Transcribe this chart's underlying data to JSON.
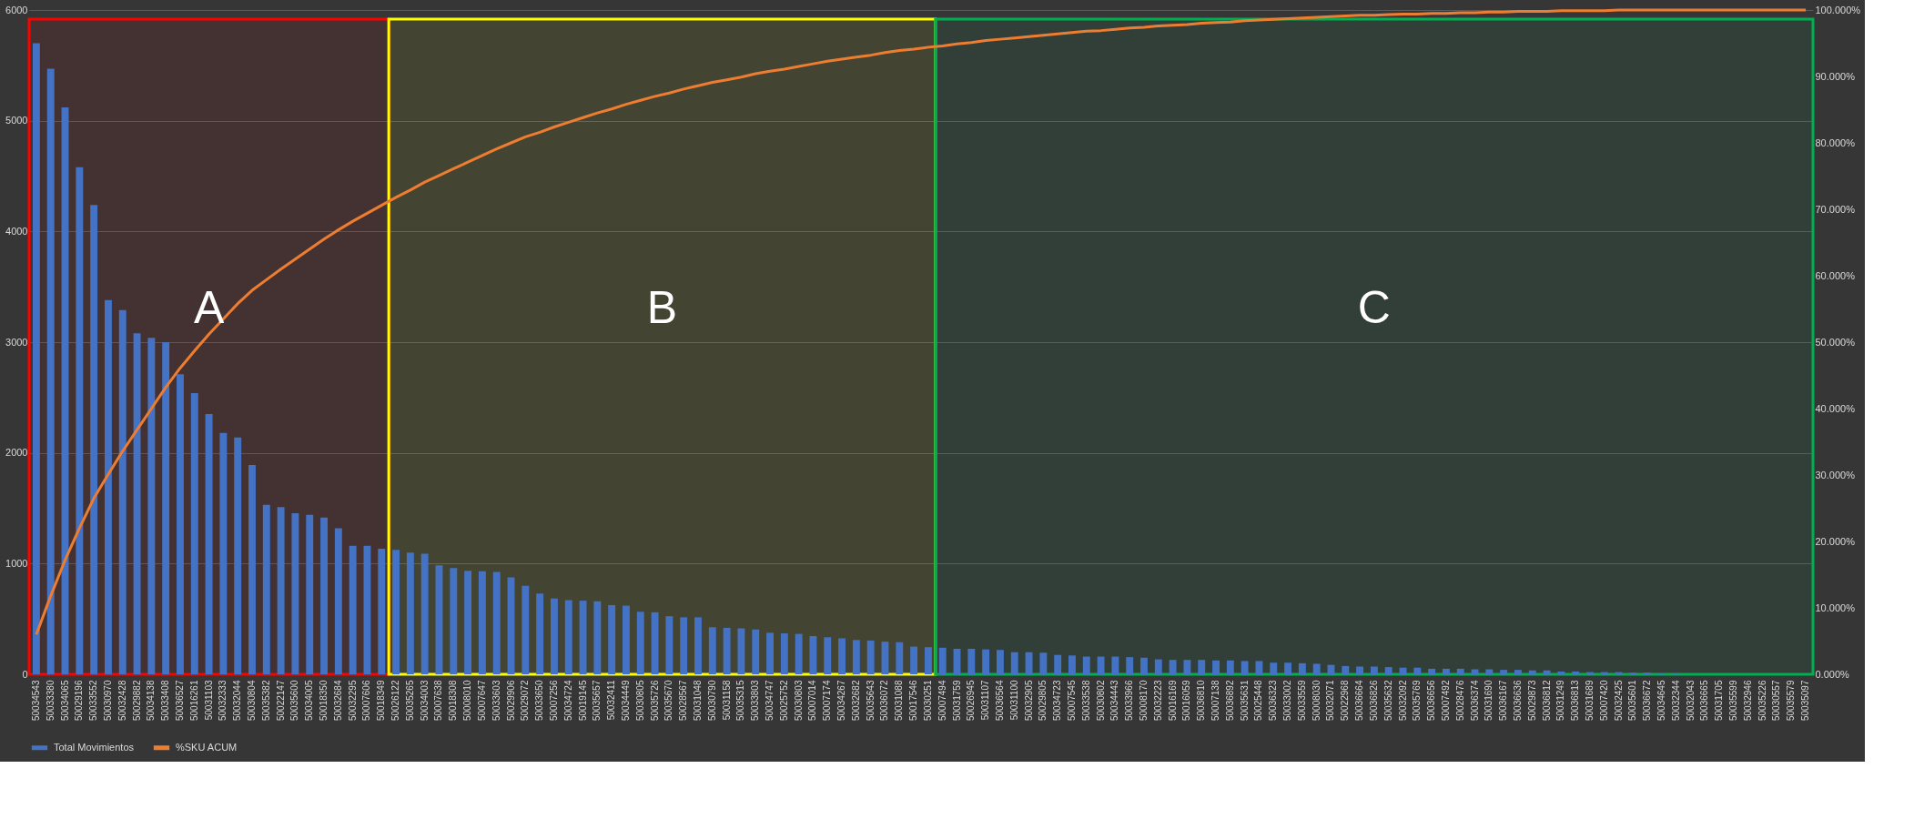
{
  "chart_data": {
    "type": "bar",
    "categories": [
      "50034543",
      "50033380",
      "50034065",
      "50029196",
      "50033552",
      "50030970",
      "50032428",
      "50029882",
      "50034138",
      "50033408",
      "50036527",
      "50016261",
      "50031103",
      "50032333",
      "50032044",
      "50030804",
      "50035382",
      "50022147",
      "50035600",
      "50034005",
      "50018350",
      "50032684",
      "50032295",
      "50007606",
      "50018349",
      "50026122",
      "50035265",
      "50034003",
      "50007638",
      "50018308",
      "50008010",
      "50007647",
      "50033603",
      "50029906",
      "50029072",
      "50033650",
      "50007256",
      "50034724",
      "50019145",
      "50035657",
      "50032411",
      "50034449",
      "50030805",
      "50035726",
      "50035670",
      "50028567",
      "50031048",
      "50030790",
      "50031158",
      "50035315",
      "50033803",
      "50034747",
      "50025752",
      "50030803",
      "50007014",
      "50007174",
      "50034267",
      "50032682",
      "50035643",
      "50036072",
      "50031088",
      "50017546",
      "50030251",
      "50007494",
      "50031759",
      "50026945",
      "50031107",
      "50036564",
      "50031100",
      "50032905",
      "50029805",
      "50034723",
      "50007545",
      "50033538",
      "50030802",
      "50034443",
      "50033966",
      "50008170",
      "50032223",
      "50016169",
      "50016059",
      "50036810",
      "50007138",
      "50036892",
      "50035631",
      "50025448",
      "50036323",
      "50033002",
      "50033559",
      "50008030",
      "50032071",
      "50022968",
      "50036664",
      "50036826",
      "50035632",
      "50032092",
      "50035769",
      "50036656",
      "50007492",
      "50028476",
      "50036374",
      "50031690",
      "50036167",
      "50036636",
      "50029873",
      "50036812",
      "50031249",
      "50036813",
      "50031689",
      "50007420",
      "50032425",
      "50035601",
      "50036672",
      "50034645",
      "50032344",
      "50032043",
      "50036665",
      "50031705",
      "50035599",
      "50032946",
      "50035226",
      "50030557",
      "50035579",
      "50035097"
    ],
    "series": [
      {
        "name": "Total Movimientos",
        "color": "#4472c4",
        "values": [
          5700,
          5470,
          5120,
          4580,
          4240,
          3380,
          3290,
          3080,
          3040,
          3000,
          2710,
          2540,
          2350,
          2180,
          2140,
          1890,
          1530,
          1510,
          1455,
          1440,
          1415,
          1320,
          1160,
          1160,
          1135,
          1125,
          1100,
          1090,
          985,
          960,
          935,
          930,
          925,
          875,
          800,
          730,
          685,
          670,
          665,
          660,
          625,
          620,
          565,
          560,
          525,
          515,
          515,
          425,
          420,
          415,
          405,
          375,
          370,
          365,
          345,
          335,
          325,
          310,
          305,
          295,
          290,
          250,
          245,
          240,
          230,
          230,
          225,
          220,
          200,
          200,
          195,
          175,
          170,
          160,
          160,
          160,
          155,
          150,
          135,
          130,
          130,
          130,
          125,
          125,
          120,
          120,
          105,
          105,
          100,
          95,
          85,
          75,
          70,
          70,
          65,
          60,
          60,
          50,
          50,
          50,
          45,
          45,
          40,
          40,
          35,
          35,
          25,
          25,
          20,
          20,
          20,
          15,
          15,
          5,
          5,
          0,
          0,
          0,
          0,
          0,
          0,
          0,
          0,
          0
        ]
      },
      {
        "name": "%SKU ACUM",
        "type": "line",
        "axis": "y2",
        "color": "#ed7d31",
        "values": [
          6.0,
          11.8,
          17.2,
          22.0,
          26.5,
          30.1,
          33.6,
          36.8,
          40.0,
          43.2,
          46.1,
          48.7,
          51.2,
          53.5,
          55.8,
          57.8,
          59.4,
          61.0,
          62.5,
          64.0,
          65.5,
          66.9,
          68.2,
          69.4,
          70.6,
          71.8,
          72.9,
          74.1,
          75.1,
          76.1,
          77.1,
          78.1,
          79.1,
          80.0,
          80.9,
          81.6,
          82.4,
          83.1,
          83.8,
          84.5,
          85.1,
          85.8,
          86.4,
          87.0,
          87.5,
          88.1,
          88.6,
          89.1,
          89.5,
          89.9,
          90.4,
          90.8,
          91.1,
          91.5,
          91.9,
          92.3,
          92.6,
          92.9,
          93.2,
          93.6,
          93.9,
          94.1,
          94.4,
          94.6,
          94.9,
          95.1,
          95.4,
          95.6,
          95.8,
          96.0,
          96.2,
          96.4,
          96.6,
          96.8,
          96.9,
          97.1,
          97.3,
          97.4,
          97.6,
          97.7,
          97.8,
          98.0,
          98.1,
          98.2,
          98.4,
          98.5,
          98.6,
          98.7,
          98.8,
          98.9,
          99.0,
          99.1,
          99.2,
          99.2,
          99.3,
          99.4,
          99.4,
          99.5,
          99.5,
          99.6,
          99.6,
          99.7,
          99.7,
          99.8,
          99.8,
          99.8,
          99.9,
          99.9,
          99.9,
          99.9,
          100.0,
          100.0,
          100.0,
          100.0,
          100.0,
          100.0,
          100.0,
          100.0,
          100.0,
          100.0,
          100.0,
          100.0,
          100.0,
          100.0
        ]
      }
    ],
    "ylim": [
      0,
      6000
    ],
    "yticks": [
      0,
      1000,
      2000,
      3000,
      4000,
      5000,
      6000
    ],
    "y2lim": [
      0,
      100
    ],
    "y2ticks": [
      {
        "value": 0,
        "label": "0.000%"
      },
      {
        "value": 10,
        "label": "10.000%"
      },
      {
        "value": 20,
        "label": "20.000%"
      },
      {
        "value": 30,
        "label": "30.000%"
      },
      {
        "value": 40,
        "label": "40.000%"
      },
      {
        "value": 50,
        "label": "50.000%"
      },
      {
        "value": 60,
        "label": "60.000%"
      },
      {
        "value": 70,
        "label": "70.000%"
      },
      {
        "value": 80,
        "label": "80.000%"
      },
      {
        "value": 90,
        "label": "90.000%"
      },
      {
        "value": 100,
        "label": "100.000%"
      }
    ],
    "bands": [
      {
        "axis": "x",
        "from": "50034543",
        "to": "50018349",
        "label": "A",
        "color": "#ff0000"
      },
      {
        "axis": "x",
        "from": "50026122",
        "to": "50030251",
        "label": "B",
        "color": "#ffff00"
      },
      {
        "axis": "x",
        "from": "50007494",
        "to": "50035097",
        "label": "C",
        "color": "#00b050"
      }
    ],
    "grid": "y",
    "legend": "bottom",
    "marker": "none",
    "line_style": "solid"
  }
}
